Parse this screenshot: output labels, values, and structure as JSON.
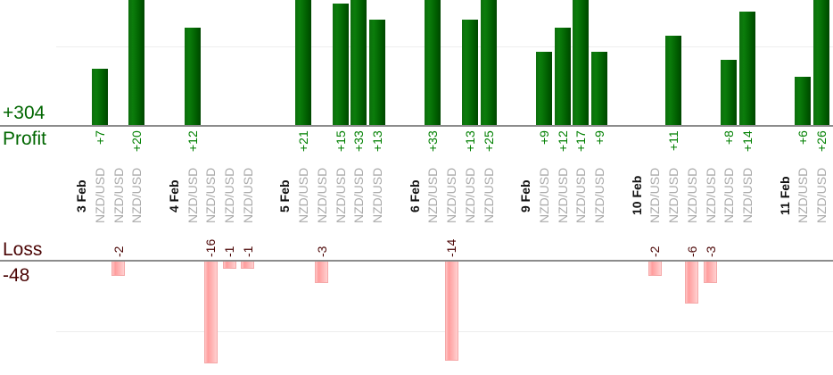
{
  "chart_data": {
    "type": "bar",
    "description": "Daily trade profit and loss bar chart by instrument",
    "profit_section": {
      "total_label": "+304",
      "axis_label": "Profit",
      "gridline_value": 10
    },
    "loss_section": {
      "total_label": "-48",
      "axis_label": "Loss",
      "gridline_value": -10
    },
    "groups": [
      {
        "date": "3 Feb",
        "trades": [
          {
            "instrument": "NZD/USD",
            "value": 7,
            "label": "+7"
          },
          {
            "instrument": "NZD/USD",
            "value": -2,
            "label": "-2"
          },
          {
            "instrument": "NZD/USD",
            "value": 20,
            "label": "+20"
          }
        ]
      },
      {
        "date": "4 Feb",
        "trades": [
          {
            "instrument": "NZD/USD",
            "value": 12,
            "label": "+12"
          },
          {
            "instrument": "NZD/USD",
            "value": -16,
            "label": "-16"
          },
          {
            "instrument": "NZD/USD",
            "value": -1,
            "label": "-1"
          },
          {
            "instrument": "NZD/USD",
            "value": -1,
            "label": "-1"
          }
        ]
      },
      {
        "date": "5 Feb",
        "trades": [
          {
            "instrument": "NZD/USD",
            "value": 21,
            "label": "+21"
          },
          {
            "instrument": "NZD/USD",
            "value": -3,
            "label": "-3"
          },
          {
            "instrument": "NZD/USD",
            "value": 15,
            "label": "+15"
          },
          {
            "instrument": "NZD/USD",
            "value": 33,
            "label": "+33"
          },
          {
            "instrument": "NZD/USD",
            "value": 13,
            "label": "+13"
          }
        ]
      },
      {
        "date": "6 Feb",
        "trades": [
          {
            "instrument": "NZD/USD",
            "value": 33,
            "label": "+33"
          },
          {
            "instrument": "NZD/USD",
            "value": -14,
            "label": "-14"
          },
          {
            "instrument": "NZD/USD",
            "value": 13,
            "label": "+13"
          },
          {
            "instrument": "NZD/USD",
            "value": 25,
            "label": "+25"
          }
        ]
      },
      {
        "date": "9 Feb",
        "trades": [
          {
            "instrument": "NZD/USD",
            "value": 9,
            "label": "+9"
          },
          {
            "instrument": "NZD/USD",
            "value": 12,
            "label": "+12"
          },
          {
            "instrument": "NZD/USD",
            "value": 17,
            "label": "+17"
          },
          {
            "instrument": "NZD/USD",
            "value": 9,
            "label": "+9"
          }
        ]
      },
      {
        "date": "10 Feb",
        "trades": [
          {
            "instrument": "NZD/USD",
            "value": -2,
            "label": "-2"
          },
          {
            "instrument": "NZD/USD",
            "value": 11,
            "label": "+11"
          },
          {
            "instrument": "NZD/USD",
            "value": -6,
            "label": "-6"
          },
          {
            "instrument": "NZD/USD",
            "value": -3,
            "label": "-3"
          },
          {
            "instrument": "NZD/USD",
            "value": 8,
            "label": "+8"
          },
          {
            "instrument": "NZD/USD",
            "value": 14,
            "label": "+14"
          }
        ]
      },
      {
        "date": "11 Feb",
        "trades": [
          {
            "instrument": "NZD/USD",
            "value": 6,
            "label": "+6"
          },
          {
            "instrument": "NZD/USD",
            "value": 26,
            "label": "+26"
          }
        ]
      }
    ],
    "colors": {
      "profit_text": "#006600",
      "profit_value_text": "#008000",
      "loss_text": "#4b0505",
      "loss_value_text": "#4b0505",
      "instrument_text": "#aaaaaa",
      "date_text": "#111111",
      "profit_bar": "#0b7d0b",
      "profit_bar_dark": "#004600",
      "loss_bar": "#ff9d9d",
      "loss_bar_light": "#ffd0d0",
      "axis_line": "#8c8c8c",
      "gridline": "#ededed"
    }
  }
}
